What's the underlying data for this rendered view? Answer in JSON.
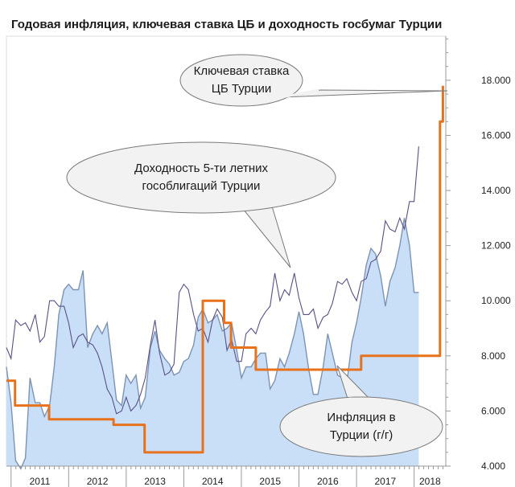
{
  "chart_data": {
    "type": "line",
    "title": "Годовая инфляция, ключевая ставка ЦБ и доходность госбумаг Турции",
    "xlabel": "",
    "ylabel": "",
    "x_tick_labels": [
      "2011",
      "2012",
      "2013",
      "2014",
      "2015",
      "2016",
      "2017",
      "2018"
    ],
    "y_tick_labels": [
      "4.000",
      "6.000",
      "8.000",
      "10.000",
      "12.000",
      "14.000",
      "16.000",
      "18.000"
    ],
    "x_range": [
      2010.92,
      2018.55
    ],
    "ylim": [
      4.0,
      19.6
    ],
    "grid": false,
    "axis_side": "right",
    "series": [
      {
        "key": "inflation",
        "type": "area",
        "color": "#c9dff8",
        "stroke": "#7c93b4",
        "x": [
          2010.92,
          2011.0,
          2011.08,
          2011.17,
          2011.25,
          2011.33,
          2011.42,
          2011.5,
          2011.58,
          2011.67,
          2011.75,
          2011.83,
          2011.92,
          2012.0,
          2012.08,
          2012.17,
          2012.25,
          2012.33,
          2012.42,
          2012.5,
          2012.58,
          2012.67,
          2012.75,
          2012.83,
          2012.92,
          2013.0,
          2013.08,
          2013.17,
          2013.25,
          2013.33,
          2013.42,
          2013.5,
          2013.58,
          2013.67,
          2013.75,
          2013.83,
          2013.92,
          2014.0,
          2014.08,
          2014.17,
          2014.25,
          2014.33,
          2014.42,
          2014.5,
          2014.58,
          2014.67,
          2014.75,
          2014.83,
          2014.92,
          2015.0,
          2015.08,
          2015.17,
          2015.25,
          2015.33,
          2015.42,
          2015.5,
          2015.58,
          2015.67,
          2015.75,
          2015.83,
          2015.92,
          2016.0,
          2016.08,
          2016.17,
          2016.25,
          2016.33,
          2016.42,
          2016.5,
          2016.58,
          2016.67,
          2016.75,
          2016.83,
          2016.92,
          2017.0,
          2017.08,
          2017.17,
          2017.25,
          2017.33,
          2017.42,
          2017.5,
          2017.58,
          2017.67,
          2017.75,
          2017.83,
          2017.92,
          2018.0,
          2018.08
        ],
        "values": [
          7.6,
          6.3,
          4.2,
          3.9,
          4.3,
          7.2,
          6.3,
          6.3,
          5.8,
          6.2,
          7.6,
          9.5,
          10.4,
          10.6,
          10.4,
          10.4,
          11.1,
          8.3,
          8.8,
          9.1,
          8.8,
          9.2,
          7.8,
          6.4,
          6.2,
          7.3,
          7.0,
          7.3,
          6.1,
          6.5,
          8.3,
          8.9,
          8.2,
          7.9,
          7.7,
          7.3,
          7.4,
          7.8,
          7.9,
          8.4,
          9.4,
          9.7,
          9.2,
          9.3,
          9.5,
          8.9,
          9.0,
          9.2,
          8.2,
          7.2,
          7.6,
          7.6,
          7.9,
          8.1,
          8.1,
          6.8,
          7.1,
          7.9,
          7.6,
          8.1,
          8.8,
          9.6,
          8.8,
          7.5,
          6.6,
          6.6,
          7.6,
          8.8,
          8.1,
          7.3,
          7.2,
          7.0,
          8.5,
          9.2,
          10.1,
          11.3,
          11.9,
          11.7,
          10.9,
          9.8,
          10.7,
          11.2,
          12.0,
          13.0,
          12.0,
          10.3,
          10.3
        ]
      },
      {
        "key": "bond_yield",
        "type": "line",
        "color": "#5a4f86",
        "x": [
          2010.92,
          2011.0,
          2011.08,
          2011.17,
          2011.25,
          2011.33,
          2011.42,
          2011.5,
          2011.58,
          2011.67,
          2011.75,
          2011.83,
          2011.92,
          2012.0,
          2012.08,
          2012.17,
          2012.25,
          2012.33,
          2012.42,
          2012.5,
          2012.58,
          2012.67,
          2012.75,
          2012.83,
          2012.92,
          2013.0,
          2013.08,
          2013.17,
          2013.25,
          2013.33,
          2013.42,
          2013.5,
          2013.58,
          2013.67,
          2013.75,
          2013.83,
          2013.92,
          2014.0,
          2014.08,
          2014.17,
          2014.25,
          2014.33,
          2014.42,
          2014.5,
          2014.58,
          2014.67,
          2014.75,
          2014.83,
          2014.92,
          2015.0,
          2015.08,
          2015.17,
          2015.25,
          2015.33,
          2015.42,
          2015.5,
          2015.58,
          2015.67,
          2015.75,
          2015.83,
          2015.92,
          2016.0,
          2016.08,
          2016.17,
          2016.25,
          2016.33,
          2016.42,
          2016.5,
          2016.58,
          2016.67,
          2016.75,
          2016.83,
          2016.92,
          2017.0,
          2017.08,
          2017.17,
          2017.25,
          2017.33,
          2017.42,
          2017.5,
          2017.58,
          2017.67,
          2017.75,
          2017.83,
          2017.92,
          2018.0,
          2018.08
        ],
        "values": [
          8.3,
          7.9,
          9.3,
          9.1,
          9.2,
          8.9,
          9.5,
          8.5,
          8.7,
          10.0,
          10.0,
          9.8,
          9.8,
          9.2,
          8.3,
          8.7,
          8.8,
          8.5,
          8.4,
          8.1,
          7.6,
          6.8,
          6.5,
          5.9,
          6.0,
          6.5,
          6.0,
          6.2,
          6.6,
          7.2,
          8.4,
          9.3,
          8.1,
          7.3,
          7.4,
          7.7,
          10.3,
          10.6,
          10.4,
          9.5,
          8.9,
          9.0,
          8.5,
          9.3,
          9.7,
          9.4,
          8.2,
          8.6,
          7.8,
          7.8,
          8.8,
          9.0,
          8.8,
          9.3,
          9.6,
          9.8,
          11.0,
          10.0,
          10.4,
          10.2,
          11.0,
          10.1,
          9.5,
          9.5,
          9.7,
          9.0,
          9.4,
          9.5,
          9.9,
          10.7,
          10.6,
          10.8,
          10.3,
          10.0,
          10.7,
          10.8,
          11.4,
          11.5,
          11.8,
          12.9,
          12.6,
          12.5,
          13.0,
          12.6,
          13.6,
          13.6,
          15.6
        ]
      },
      {
        "key": "key_rate",
        "type": "step",
        "color": "#e8721c",
        "x": [
          2010.92,
          2010.99,
          2011.07,
          2011.14,
          2011.26,
          2011.42,
          2011.49,
          2011.66,
          2012.0,
          2012.33,
          2012.48,
          2012.5,
          2012.56,
          2012.78,
          2012.9,
          2013.0,
          2013.16,
          2013.23,
          2013.32,
          2013.5,
          2013.66,
          2013.85,
          2014.0,
          2014.1,
          2014.22,
          2014.33,
          2014.46,
          2014.58,
          2014.7,
          2014.82,
          2014.95,
          2015.08,
          2015.25,
          2015.42,
          2015.58,
          2015.75,
          2015.92,
          2016.0,
          2016.17,
          2016.33,
          2016.5,
          2016.66,
          2016.83,
          2016.92,
          2017.08,
          2017.25,
          2017.5,
          2017.75,
          2017.92,
          2018.0,
          2018.08,
          2018.15,
          2018.22,
          2018.3,
          2018.38,
          2018.45,
          2018.5
        ],
        "values": [
          7.1,
          7.1,
          6.2,
          6.2,
          6.2,
          6.2,
          6.2,
          5.7,
          5.7,
          5.7,
          5.7,
          5.7,
          5.7,
          5.5,
          5.5,
          5.5,
          5.5,
          5.5,
          4.5,
          4.5,
          4.5,
          4.5,
          4.5,
          4.5,
          4.5,
          10.0,
          10.0,
          10.0,
          9.2,
          8.3,
          8.3,
          8.3,
          7.5,
          7.5,
          7.5,
          7.5,
          7.5,
          7.5,
          7.5,
          7.5,
          7.5,
          7.5,
          7.5,
          7.5,
          8.0,
          8.0,
          8.0,
          8.0,
          8.0,
          8.0,
          8.0,
          8.0,
          8.0,
          8.0,
          8.0,
          16.5,
          17.8
        ]
      }
    ],
    "annotations": [
      {
        "key": "callout_key_rate",
        "lines": [
          "Ключевая ставка",
          "ЦБ Турции"
        ]
      },
      {
        "key": "callout_bond",
        "lines": [
          "Доходность  5-ти летних",
          "гособлигаций Турции"
        ]
      },
      {
        "key": "callout_inflation",
        "lines": [
          "Инфляция в",
          "Турции (г/г)"
        ]
      }
    ]
  }
}
